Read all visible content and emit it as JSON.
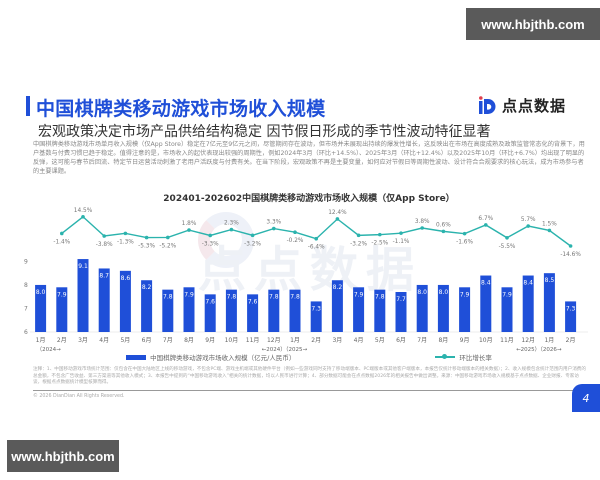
{
  "watermarks": {
    "top": "www.hbjthb.com",
    "bottom": "www.hbjthb.com"
  },
  "header": {
    "title": "中国棋牌类移动游戏市场收入规模",
    "subtitle": "宏观政策决定市场产品供给结构稳定 因节假日形成的季节性波动特征显著",
    "logo_text": "点点数据"
  },
  "description": "中国棋牌类移动游戏市场单月收入规模（仅App Store）稳定在7亿元至9亿元之间，尽管期间存在波动，但市场并未展现出持续的爆发性增长，这反映出在市场在高度成熟及政策监管常态化的背景下，用户基数与付费习惯已趋于稳定。值得注意的是，市场收入的起伏表现出较强的周期性，例如2024年3月（环比+14.5%）、2025年3月（环比+12.4%）以及2025年10月（环比+6.7%）均出现了明显的反弹，这可能与春节后回流、特定节日运营活动刺激了老用户活跃度与付费有关。在当下阶段，宏观政策不再是主要变量，如何应对节假日等周期性波动、设计符合合规要求的核心玩法，成为市场参与者的主要课题。",
  "chart_data": {
    "type": "bar+line",
    "title": "202401-202602中国棋牌类移动游戏市场收入规模（仅App Store）",
    "categories": [
      "1月",
      "2月",
      "3月",
      "4月",
      "5月",
      "6月",
      "7月",
      "8月",
      "9月",
      "10月",
      "11月",
      "12月",
      "1月",
      "2月",
      "3月",
      "4月",
      "5月",
      "6月",
      "7月",
      "8月",
      "9月",
      "10月",
      "11月",
      "12月",
      "1月",
      "2月"
    ],
    "year_markers": [
      "（2024→",
      "←2024）（2025→",
      "←2025）（2026→"
    ],
    "series": [
      {
        "name": "中国棋牌类移动游戏市场收入规模（亿元/人民币）",
        "type": "bar",
        "color": "#1f4fd8",
        "values": [
          8.0,
          7.9,
          9.1,
          8.7,
          8.6,
          8.2,
          7.8,
          7.9,
          7.6,
          7.8,
          7.6,
          7.8,
          7.8,
          7.3,
          8.2,
          7.9,
          7.8,
          7.7,
          8.0,
          8.0,
          7.9,
          8.4,
          7.9,
          8.4,
          8.5,
          7.3
        ]
      },
      {
        "name": "环比增长率",
        "type": "line",
        "color": "#2bb3ad",
        "values": [
          -1.4,
          14.5,
          -3.8,
          -1.3,
          -5.3,
          -5.2,
          1.8,
          -3.3,
          2.3,
          -3.2,
          3.3,
          -0.2,
          -6.4,
          12.4,
          -3.2,
          -2.5,
          -1.1,
          3.8,
          0.6,
          -1.6,
          6.7,
          -5.5,
          5.7,
          1.5,
          -14.6
        ],
        "labels": [
          "-1.4%",
          "14.5%",
          "-3.8%",
          "-1.3%",
          "-5.3%",
          "-5.2%",
          "1.8%",
          "-3.3%",
          "2.3%",
          "-3.2%",
          "3.3%",
          "-0.2%",
          "-6.4%",
          "12.4%",
          "-3.2%",
          "-2.5%",
          "-1.1%",
          "3.8%",
          "0.6%",
          "-1.6%",
          "6.7%",
          "-5.5%",
          "5.7%",
          "1.5%",
          "-14.6%"
        ]
      }
    ],
    "y_ticks": [
      "6",
      "7",
      "8",
      "9"
    ],
    "ylim": [
      6,
      9.4
    ],
    "xlabel": "",
    "ylabel": "",
    "legend_position": "bottom"
  },
  "legend": {
    "bar_label": "中国棋牌类移动游戏市场收入规模（亿元/人民币）",
    "line_label": "环比增长率"
  },
  "notes": "注释：1、中国移动游戏市场统计范围：仅包含在中国大陆地区上线的移动游戏，不包含PC端、游戏主机端或其他硬件平台（例如一些游戏同时支持了移动端版本、PC端版本或其他客户端版本，本报告仅统计移动端版本的相关数据）；2、收入规模包含统计范围内用户消费的总金额，不包含广告收益、第三方渠道等其他收入模式；3、本报告中提到的“中国移动游戏收入”相关的统计数据，均以人民币进行计算；4、部分数据可能会在点点数据2026年的相关报告中做出调整。来源：中国移动游戏市场收入规模基于点点数据、企业财报、专家访谈，根据点点数据统计模型核算而得。",
  "copyright": "© 2026 DianDian All Rights Reserved.",
  "page_number": "4",
  "colors": {
    "accent": "#1f4fd8",
    "line": "#2bb3ad"
  }
}
